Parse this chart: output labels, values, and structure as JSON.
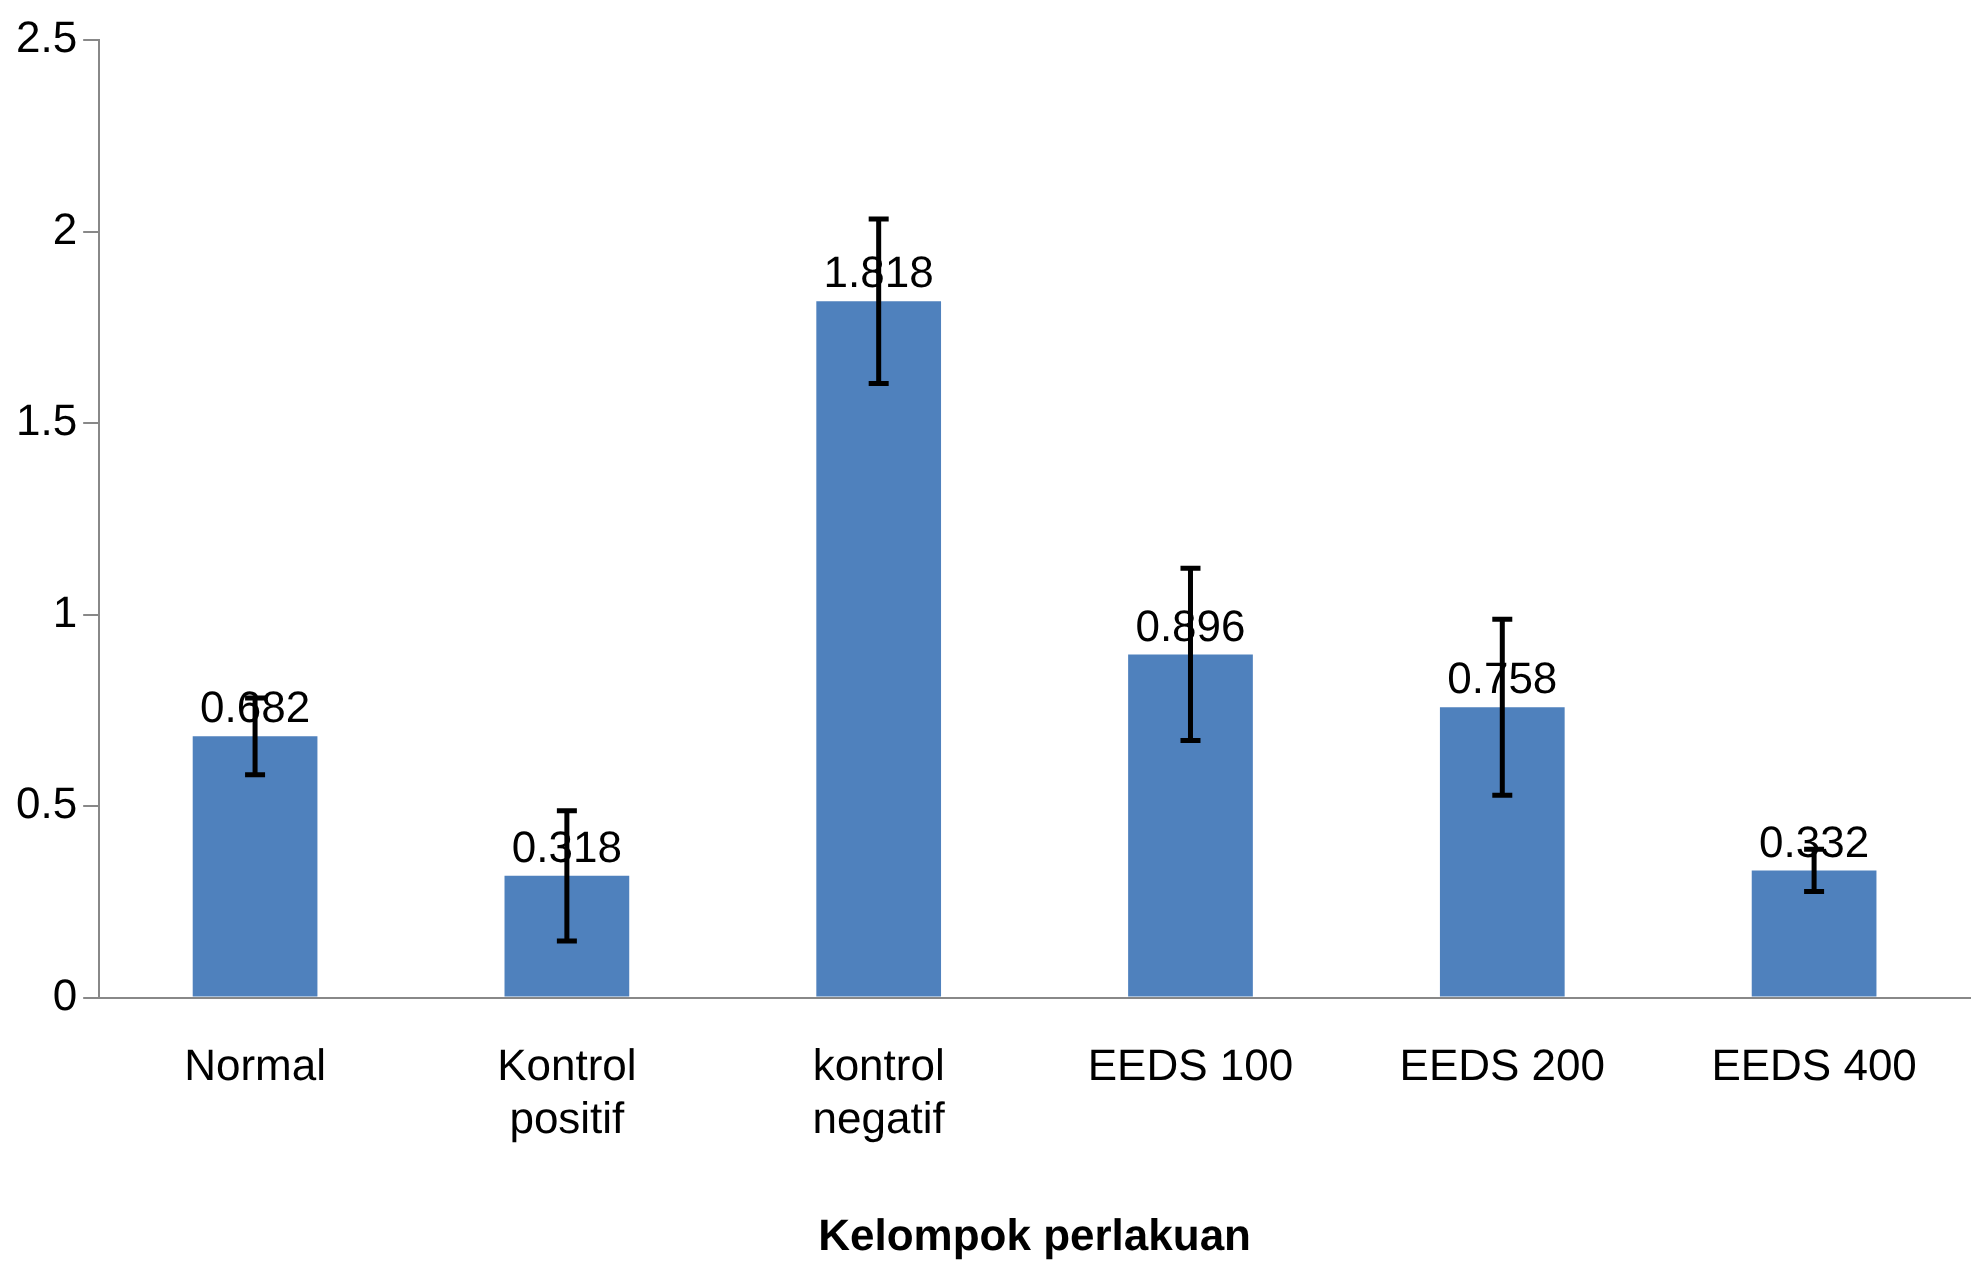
{
  "chart_data": {
    "type": "bar",
    "xlabel": "Kelompok perlakuan",
    "categories": [
      "Normal",
      "Kontrol positif",
      "kontrol negatif",
      "EEDS 100",
      "EEDS 200",
      "EEDS 400"
    ],
    "values": [
      0.682,
      0.318,
      1.818,
      0.896,
      0.758,
      0.332
    ],
    "errors": [
      0.1,
      0.17,
      0.215,
      0.225,
      0.23,
      0.055
    ],
    "color": "#4f81bd",
    "ylim": [
      0,
      2.5
    ],
    "yticks": [
      0,
      0.5,
      1,
      1.5,
      2,
      2.5
    ],
    "grid": false,
    "legend": false,
    "data_labels": true
  }
}
